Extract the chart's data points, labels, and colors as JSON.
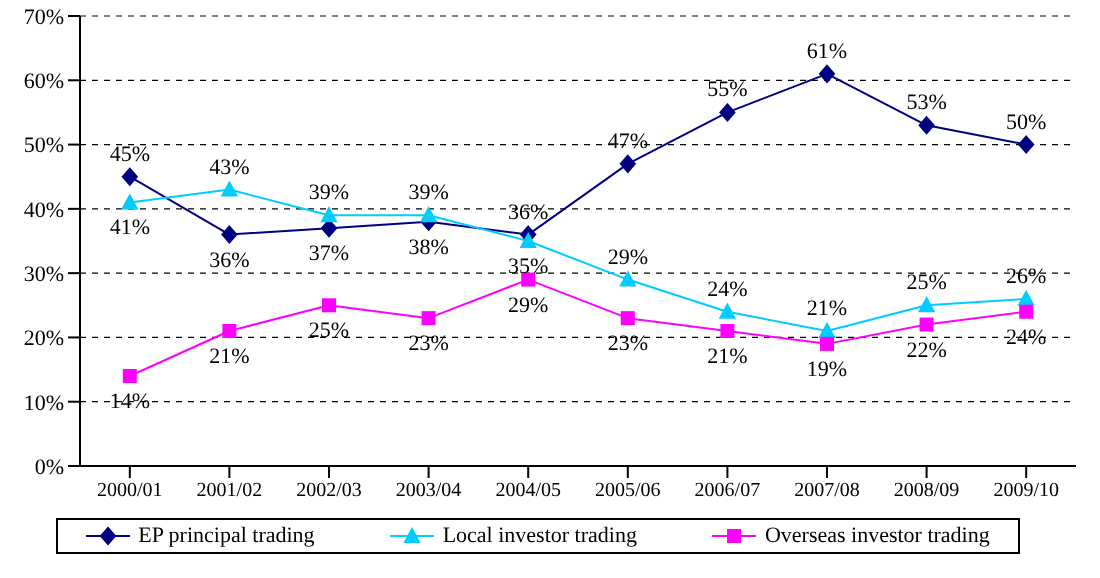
{
  "chart_data": {
    "type": "line",
    "categories": [
      "2000/01",
      "2001/02",
      "2002/03",
      "2003/04",
      "2004/05",
      "2005/06",
      "2006/07",
      "2007/08",
      "2008/09",
      "2009/10"
    ],
    "series": [
      {
        "name": "EP principal trading",
        "color": "#000080",
        "marker": "diamond",
        "values": [
          45,
          36,
          37,
          38,
          36,
          47,
          55,
          61,
          53,
          50
        ],
        "value_labels": [
          "45%",
          "36%",
          "37%",
          "38%",
          "36%",
          "47%",
          "55%",
          "61%",
          "53%",
          "50%"
        ]
      },
      {
        "name": "Local investor trading",
        "color": "#00ccff",
        "marker": "triangle",
        "values": [
          41,
          43,
          39,
          39,
          35,
          29,
          24,
          21,
          25,
          26
        ],
        "value_labels": [
          "41%",
          "43%",
          "39%",
          "39%",
          "35%",
          "29%",
          "24%",
          "21%",
          "25%",
          "26%"
        ]
      },
      {
        "name": "Overseas investor trading",
        "color": "#ff00ff",
        "marker": "square",
        "values": [
          14,
          21,
          25,
          23,
          29,
          23,
          21,
          19,
          22,
          24
        ],
        "value_labels": [
          "14%",
          "21%",
          "25%",
          "23%",
          "29%",
          "23%",
          "21%",
          "19%",
          "22%",
          "24%"
        ]
      }
    ],
    "ylim": [
      0,
      70
    ],
    "yticks": [
      {
        "value": 0,
        "label": "0%"
      },
      {
        "value": 10,
        "label": "10%"
      },
      {
        "value": 20,
        "label": "20%"
      },
      {
        "value": 30,
        "label": "30%"
      },
      {
        "value": 40,
        "label": "40%"
      },
      {
        "value": 50,
        "label": "50%"
      },
      {
        "value": 60,
        "label": "60%"
      },
      {
        "value": 70,
        "label": "70%"
      }
    ],
    "grid": "y",
    "legend": "bottom"
  }
}
